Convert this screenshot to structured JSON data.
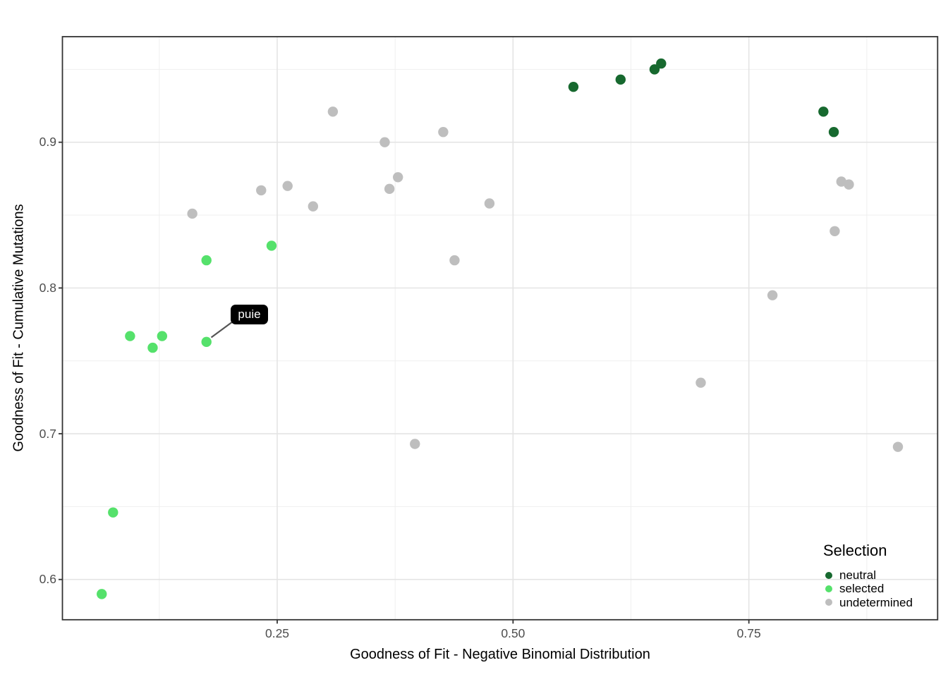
{
  "figure": {
    "background": "#ffffff"
  },
  "chart_data": {
    "type": "scatter",
    "title": "",
    "xlabel": "Goodness of Fit - Negative Binomial Distribution",
    "ylabel": "Goodness of Fit - Cumulative Mutations",
    "xlim": [
      0.022,
      0.95
    ],
    "ylim": [
      0.572,
      0.972
    ],
    "grid": true,
    "x_ticks": [
      {
        "value": 0.25,
        "label": "0.25"
      },
      {
        "value": 0.5,
        "label": "0.50"
      },
      {
        "value": 0.75,
        "label": "0.75"
      }
    ],
    "y_ticks": [
      {
        "value": 0.6,
        "label": "0.6"
      },
      {
        "value": 0.7,
        "label": "0.7"
      },
      {
        "value": 0.8,
        "label": "0.8"
      },
      {
        "value": 0.9,
        "label": "0.9"
      }
    ],
    "x_minor": [
      0.125,
      0.375,
      0.625,
      0.875
    ],
    "y_minor": [
      0.65,
      0.75,
      0.85,
      0.95
    ],
    "legend": {
      "title": "Selection",
      "position": "inside-bottom-right",
      "entries": [
        {
          "label": "neutral",
          "color": "#17692F"
        },
        {
          "label": "selected",
          "color": "#55E16B"
        },
        {
          "label": "undetermined",
          "color": "#BEBEBE"
        }
      ]
    },
    "series": [
      {
        "name": "neutral",
        "color": "#17692F",
        "points": [
          [
            0.564,
            0.938
          ],
          [
            0.614,
            0.943
          ],
          [
            0.65,
            0.95
          ],
          [
            0.657,
            0.954
          ],
          [
            0.829,
            0.921
          ],
          [
            0.84,
            0.907
          ]
        ]
      },
      {
        "name": "selected",
        "color": "#55E16B",
        "points": [
          [
            0.244,
            0.829
          ],
          [
            0.175,
            0.819
          ],
          [
            0.094,
            0.767
          ],
          [
            0.128,
            0.767
          ],
          [
            0.118,
            0.759
          ],
          [
            0.175,
            0.763
          ],
          [
            0.076,
            0.646
          ],
          [
            0.064,
            0.59
          ]
        ]
      },
      {
        "name": "undetermined",
        "color": "#BEBEBE",
        "points": [
          [
            0.309,
            0.921
          ],
          [
            0.426,
            0.907
          ],
          [
            0.364,
            0.9
          ],
          [
            0.378,
            0.876
          ],
          [
            0.369,
            0.868
          ],
          [
            0.233,
            0.867
          ],
          [
            0.261,
            0.87
          ],
          [
            0.288,
            0.856
          ],
          [
            0.16,
            0.851
          ],
          [
            0.475,
            0.858
          ],
          [
            0.438,
            0.819
          ],
          [
            0.848,
            0.873
          ],
          [
            0.856,
            0.871
          ],
          [
            0.841,
            0.839
          ],
          [
            0.775,
            0.795
          ],
          [
            0.699,
            0.735
          ],
          [
            0.396,
            0.693
          ],
          [
            0.908,
            0.691
          ]
        ]
      }
    ],
    "annotation": {
      "label": "puie",
      "target": [
        0.175,
        0.763
      ],
      "box_color": "#000000",
      "text_color": "#FFFFFF"
    },
    "colors": {
      "grid_major": "#E4E4E4",
      "grid_minor": "#EFEFEF",
      "panel_border": "#333333",
      "tick_mark": "#333333",
      "tick_text": "#4D4D4D",
      "leader_line": "#555555"
    }
  }
}
